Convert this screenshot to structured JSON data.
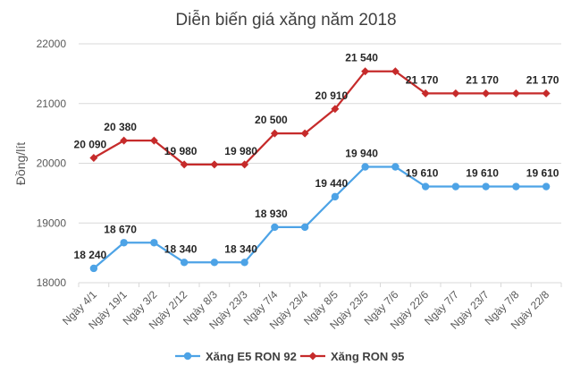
{
  "chart_data": {
    "type": "line",
    "title": "Diễn biến giá xăng năm 2018",
    "xlabel": "",
    "ylabel": "Đồng/lít",
    "ylim": [
      18000,
      22000
    ],
    "yticks": [
      18000,
      19000,
      20000,
      21000,
      22000
    ],
    "grid": true,
    "legend_position": "bottom",
    "categories": [
      "Ngày 4/1",
      "Ngày 19/1",
      "Ngày 3/2",
      "Ngày 2/12",
      "Ngày 8/3",
      "Ngày 23/3",
      "Ngày 7/4",
      "Ngày 23/4",
      "Ngày 8/5",
      "Ngày 23/5",
      "Ngày 7/6",
      "Ngày 22/6",
      "Ngày 7/7",
      "Ngày 23/7",
      "Ngày 7/8",
      "Ngày 22/8"
    ],
    "series": [
      {
        "name": "Xăng E5 RON 92",
        "color": "#4da3e6",
        "marker": "circle",
        "values": [
          18240,
          18670,
          18670,
          18340,
          18340,
          18340,
          18930,
          18930,
          19440,
          19940,
          19940,
          19610,
          19610,
          19610,
          19610,
          19610
        ],
        "labels": [
          "18 240",
          "18 670",
          "",
          "18 340",
          "",
          "18 340",
          "18 930",
          "",
          "19 440",
          "19 940",
          "",
          "19 610",
          "",
          "19 610",
          "",
          "19 610"
        ]
      },
      {
        "name": "Xăng RON 95",
        "color": "#c62b2b",
        "marker": "diamond",
        "values": [
          20090,
          20380,
          20380,
          19980,
          19980,
          19980,
          20500,
          20500,
          20910,
          21540,
          21540,
          21170,
          21170,
          21170,
          21170,
          21170
        ],
        "labels": [
          "20 090",
          "20 380",
          "",
          "19 980",
          "",
          "19 980",
          "20 500",
          "",
          "20 910",
          "21 540",
          "",
          "21 170",
          "",
          "21 170",
          "",
          "21 170"
        ]
      }
    ]
  }
}
